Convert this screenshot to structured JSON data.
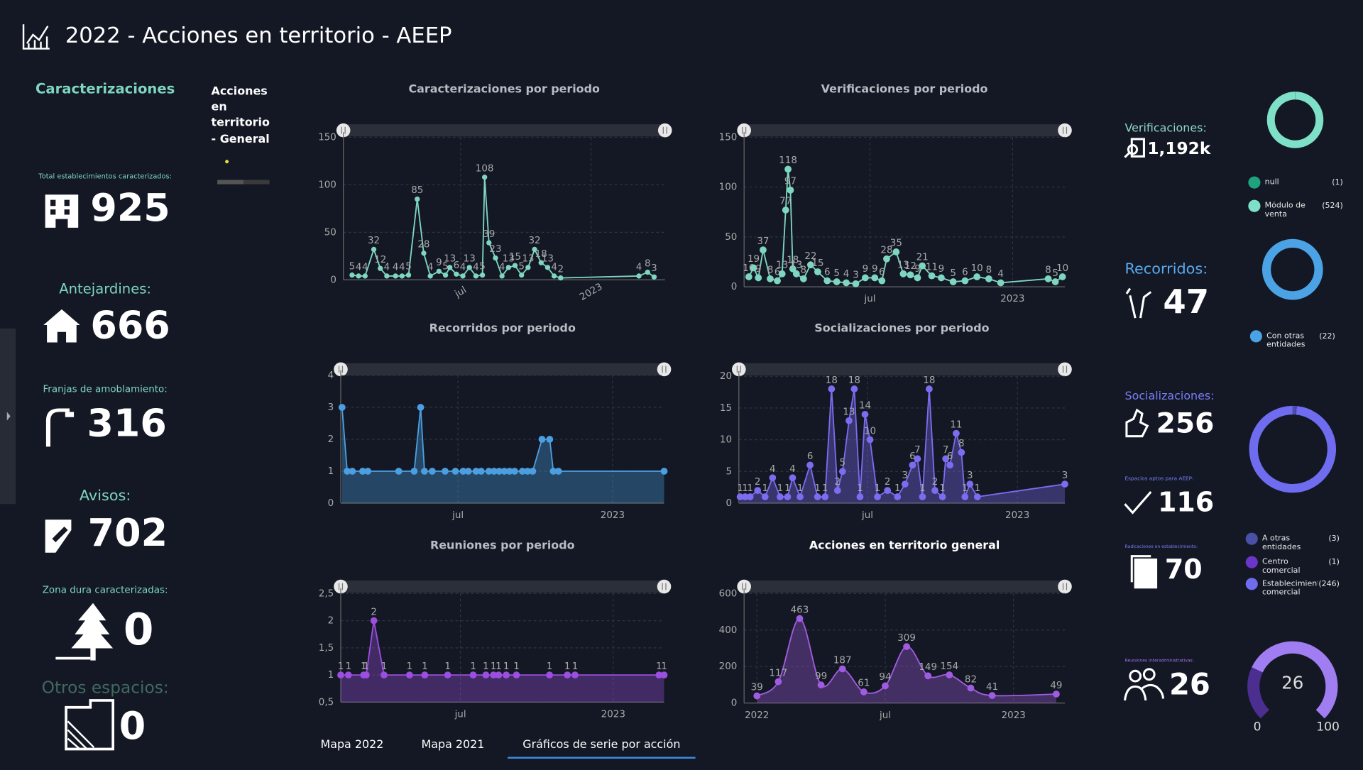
{
  "header": {
    "title": "2022 - Acciones en territorio - AEEP"
  },
  "tabs": [
    "Mapa 2022",
    "Mapa 2021",
    "Gráficos de serie por acción"
  ],
  "left": {
    "title": "Caracterizaciones",
    "kpis": [
      {
        "label": "Total establecimientos caracterizados:",
        "value": 925
      },
      {
        "label": "Antejardines:",
        "value": 666
      },
      {
        "label": "Franjas de amoblamiento:",
        "value": 316
      },
      {
        "label": "Avisos:",
        "value": 702
      },
      {
        "label": "Zona dura caracterizadas:",
        "value": 0
      },
      {
        "label": "Otros espacios:",
        "value": 0
      }
    ]
  },
  "widget": {
    "title": "Acciones en territorio - General"
  },
  "right_kpis": [
    {
      "label": "Verificaciones:",
      "value": "1,192k"
    },
    {
      "label": "Recorridos:",
      "value": 47
    },
    {
      "label": "Socializaciones:",
      "value": 256
    },
    {
      "label": "Espacios aptos para AEEP:",
      "value": 116
    },
    {
      "label": "Radicaciones en establecimiento:",
      "value": 70
    },
    {
      "label": "Reuniones interadministrativas:",
      "value": 26
    }
  ],
  "chart_data": [
    {
      "type": "line",
      "title": "Caracterizaciones por periodo",
      "color": "#7fd6c0",
      "grid": true,
      "data_labels": true,
      "x": [
        1.0,
        1.3,
        1.6,
        2.0,
        2.3,
        2.6,
        3.0,
        3.3,
        3.6,
        4.0,
        4.3,
        4.6,
        5.0,
        5.3,
        5.5,
        5.8,
        6.1,
        6.4,
        6.7,
        7.0,
        7.1,
        7.3,
        7.6,
        7.9,
        8.2,
        8.5,
        8.8,
        9.1,
        9.4,
        9.7,
        10.0,
        10.3,
        10.6,
        14.2,
        14.6,
        14.9
      ],
      "values": [
        5,
        4,
        4,
        32,
        12,
        4,
        4,
        4,
        5,
        85,
        28,
        4,
        9,
        5,
        13,
        6,
        4,
        13,
        4,
        5,
        108,
        39,
        23,
        4,
        13,
        15,
        5,
        13,
        32,
        18,
        13,
        4,
        2,
        4,
        8,
        3
      ],
      "xlim": [
        0.6,
        15.4
      ],
      "xticks": [
        {
          "value": 6,
          "label": "jul"
        },
        {
          "value": 12,
          "label": "2023"
        }
      ],
      "ylim": [
        0,
        150
      ],
      "yticks": [
        0,
        50,
        100,
        150
      ]
    },
    {
      "type": "line",
      "title": "Verificaciones por periodo",
      "color": "#7fd6c0",
      "grid": true,
      "data_labels": true,
      "x": [
        0.9,
        1.1,
        1.3,
        1.5,
        1.8,
        2.1,
        2.3,
        2.45,
        2.55,
        2.65,
        2.75,
        2.9,
        3.2,
        3.5,
        3.8,
        4.2,
        4.6,
        5.0,
        5.4,
        5.8,
        6.2,
        6.5,
        6.7,
        7.1,
        7.4,
        7.7,
        8.0,
        8.2,
        8.6,
        9.0,
        9.5,
        10.0,
        10.5,
        11.0,
        11.5,
        13.5,
        13.8,
        14.1
      ],
      "values": [
        10,
        19,
        9,
        37,
        8,
        6,
        13,
        77,
        118,
        97,
        18,
        13,
        8,
        22,
        15,
        6,
        5,
        4,
        3,
        9,
        9,
        6,
        28,
        35,
        13,
        12,
        9,
        21,
        11,
        9,
        5,
        6,
        10,
        8,
        4,
        8,
        5,
        10
      ],
      "xlim": [
        0.7,
        14.2
      ],
      "xticks": [
        {
          "value": 6,
          "label": "jul"
        },
        {
          "value": 12,
          "label": "2023"
        }
      ],
      "ylim": [
        0,
        150
      ],
      "yticks": [
        0,
        50,
        100,
        150
      ]
    },
    {
      "type": "area",
      "title": "Recorridos por periodo",
      "color": "#4b9fe0",
      "grid": true,
      "data_labels": false,
      "x": [
        1.5,
        1.7,
        1.9,
        2.3,
        2.5,
        3.7,
        4.3,
        4.55,
        4.7,
        5.0,
        5.5,
        5.9,
        6.2,
        6.4,
        6.7,
        6.9,
        7.2,
        7.4,
        7.6,
        7.8,
        8.0,
        8.2,
        8.5,
        8.7,
        8.9,
        9.26,
        9.56,
        9.7,
        9.9,
        14.0
      ],
      "values": [
        3,
        1,
        1,
        1,
        1,
        1,
        1,
        3,
        1,
        1,
        1,
        1,
        1,
        1,
        1,
        1,
        1,
        1,
        1,
        1,
        1,
        1,
        1,
        1,
        1,
        2,
        2,
        1,
        1,
        1
      ],
      "xlim": [
        1.45,
        14.0
      ],
      "xticks": [
        {
          "value": 6,
          "label": "jul"
        },
        {
          "value": 12,
          "label": "2023"
        }
      ],
      "ylim": [
        0,
        4
      ],
      "yticks": [
        0,
        1,
        2,
        3,
        4
      ]
    },
    {
      "type": "area",
      "title": "Socializaciones por periodo",
      "color": "#7b6cf0",
      "grid": true,
      "data_labels": true,
      "x": [
        0.9,
        1.1,
        1.3,
        1.6,
        1.9,
        2.2,
        2.5,
        2.8,
        3.0,
        3.3,
        3.7,
        4.0,
        4.3,
        4.56,
        4.8,
        5.0,
        5.26,
        5.47,
        5.7,
        5.9,
        6.1,
        6.4,
        6.8,
        7.2,
        7.5,
        7.8,
        8.0,
        8.2,
        8.47,
        8.7,
        9.0,
        9.13,
        9.3,
        9.55,
        9.76,
        9.9,
        10.1,
        10.4,
        13.9
      ],
      "values": [
        1,
        1,
        1,
        2,
        1,
        4,
        1,
        1,
        4,
        1,
        6,
        1,
        1,
        18,
        2,
        5,
        13,
        18,
        1,
        14,
        10,
        1,
        2,
        1,
        3,
        6,
        7,
        1,
        18,
        2,
        1,
        7,
        6,
        11,
        8,
        1,
        3,
        1,
        3
      ],
      "xlim": [
        0.85,
        13.9
      ],
      "xticks": [
        {
          "value": 6,
          "label": "jul"
        },
        {
          "value": 12,
          "label": "2023"
        }
      ],
      "ylim": [
        0,
        20
      ],
      "yticks": [
        0,
        5,
        10,
        15,
        20
      ]
    },
    {
      "type": "area",
      "title": "Reuniones por periodo",
      "color": "#9a4fe0",
      "grid": true,
      "data_labels": true,
      "x": [
        1.3,
        1.6,
        2.2,
        2.3,
        2.6,
        3.0,
        4.0,
        4.6,
        5.5,
        6.5,
        7.0,
        7.3,
        7.5,
        7.8,
        8.2,
        9.5,
        10.2,
        10.5,
        13.8,
        14.0
      ],
      "values": [
        1,
        1,
        1,
        1,
        2,
        1,
        1,
        1,
        1,
        1,
        1,
        1,
        1,
        1,
        1,
        1,
        1,
        1,
        1,
        1
      ],
      "xlim": [
        1.3,
        14.0
      ],
      "xticks": [
        {
          "value": 6,
          "label": "jul"
        },
        {
          "value": 12,
          "label": "2023"
        }
      ],
      "ylim": [
        0.5,
        2.5
      ],
      "yticks": [
        {
          "value": 0.5,
          "label": "0,5"
        },
        1,
        {
          "value": 1.5,
          "label": "1,5"
        },
        2,
        {
          "value": 2.5,
          "label": "2,5"
        }
      ]
    },
    {
      "type": "area",
      "title": "Acciones en territorio general",
      "color": "#a05ce0",
      "grid": true,
      "data_labels": true,
      "smooth": true,
      "x": [
        0,
        1,
        2,
        3,
        4,
        5,
        6,
        7,
        8,
        9,
        10,
        11,
        14
      ],
      "values": [
        39,
        117,
        463,
        99,
        187,
        61,
        94,
        309,
        149,
        154,
        82,
        41,
        49
      ],
      "xlim": [
        -0.6,
        14.4
      ],
      "xticks": [
        {
          "value": 0,
          "label": "2022"
        },
        {
          "value": 6,
          "label": "jul"
        },
        {
          "value": 12,
          "label": "2023"
        }
      ],
      "ylim": [
        0,
        600
      ],
      "yticks": [
        0,
        200,
        400,
        600
      ]
    },
    {
      "type": "donut",
      "categories": [
        "null",
        "Módulo de venta"
      ],
      "values": [
        1,
        524
      ],
      "value_labels": [
        "(1)",
        "(524)"
      ],
      "colors": [
        "#1fa37f",
        "#7fe0c8"
      ]
    },
    {
      "type": "donut",
      "categories": [
        "Con otras entidades"
      ],
      "values": [
        22
      ],
      "value_labels": [
        "(22)"
      ],
      "colors": [
        "#4ba3e6"
      ]
    },
    {
      "type": "donut",
      "categories": [
        "A otras entidades",
        "Centro comercial",
        "Establecimiento comercial"
      ],
      "values": [
        3,
        1,
        246
      ],
      "value_labels": [
        "(3)",
        "(1)",
        "(246)"
      ],
      "colors": [
        "#4a4fa8",
        "#6a35c8",
        "#6f6cf0"
      ]
    },
    {
      "type": "gauge",
      "value": 26,
      "ylim": [
        0,
        100
      ],
      "yticks": [
        0,
        100
      ],
      "color": "#4b2e8f",
      "track_color": "#a07ef2"
    }
  ]
}
